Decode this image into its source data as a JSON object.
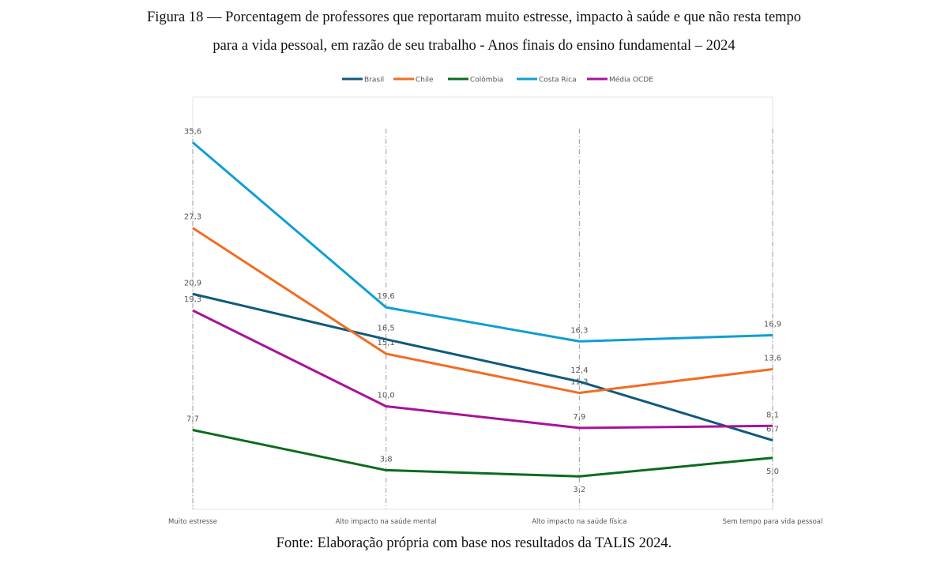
{
  "figure": {
    "title_line1": "Figura 18 — Porcentagem de professores que reportaram muito estresse, impacto à saúde e que não resta tempo",
    "title_line2": "para a vida pessoal, em razão de seu trabalho - Anos finais do ensino fundamental – 2024",
    "source": "Fonte: Elaboração própria com base nos resultados da TALIS 2024."
  },
  "chart_data": {
    "type": "line",
    "title": "Porcentagem de professores que reportaram muito estresse, impacto à saúde e que não resta tempo para a vida pessoal, em razão de seu trabalho - Anos finais do ensino fundamental – 2024",
    "xlabel": "",
    "ylabel": "",
    "ylim": [
      0,
      40
    ],
    "grid": false,
    "legend_position": "top",
    "categories": [
      "Muito estresse",
      "Alto impacto na saúde mental",
      "Alto impacto na saúde física",
      "Sem tempo para vida pessoal"
    ],
    "series": [
      {
        "name": "Brasil",
        "color": "#0E5A7E",
        "values": [
          20.9,
          16.5,
          12.4,
          6.7
        ],
        "labels": [
          "20,9",
          "16,5",
          "12,4",
          "6,7"
        ]
      },
      {
        "name": "Chile",
        "color": "#F26C21",
        "values": [
          27.3,
          15.1,
          11.3,
          13.6
        ],
        "labels": [
          "27,3",
          "15,1",
          "11,3",
          "13,6"
        ]
      },
      {
        "name": "Colômbia",
        "color": "#0B6B1E",
        "values": [
          7.7,
          3.8,
          3.2,
          5.0
        ],
        "labels": [
          "7,7",
          "3,8",
          "3,2",
          "5,0"
        ]
      },
      {
        "name": "Costa Rica",
        "color": "#0F9ED5",
        "values": [
          35.6,
          19.6,
          16.3,
          16.9
        ],
        "labels": [
          "35,6",
          "19,6",
          "16,3",
          "16,9"
        ]
      },
      {
        "name": "Média OCDE",
        "color": "#A7139A",
        "values": [
          19.3,
          10.0,
          7.9,
          8.1
        ],
        "labels": [
          "19,3",
          "10,0",
          "7,9",
          "8,1"
        ]
      }
    ]
  }
}
